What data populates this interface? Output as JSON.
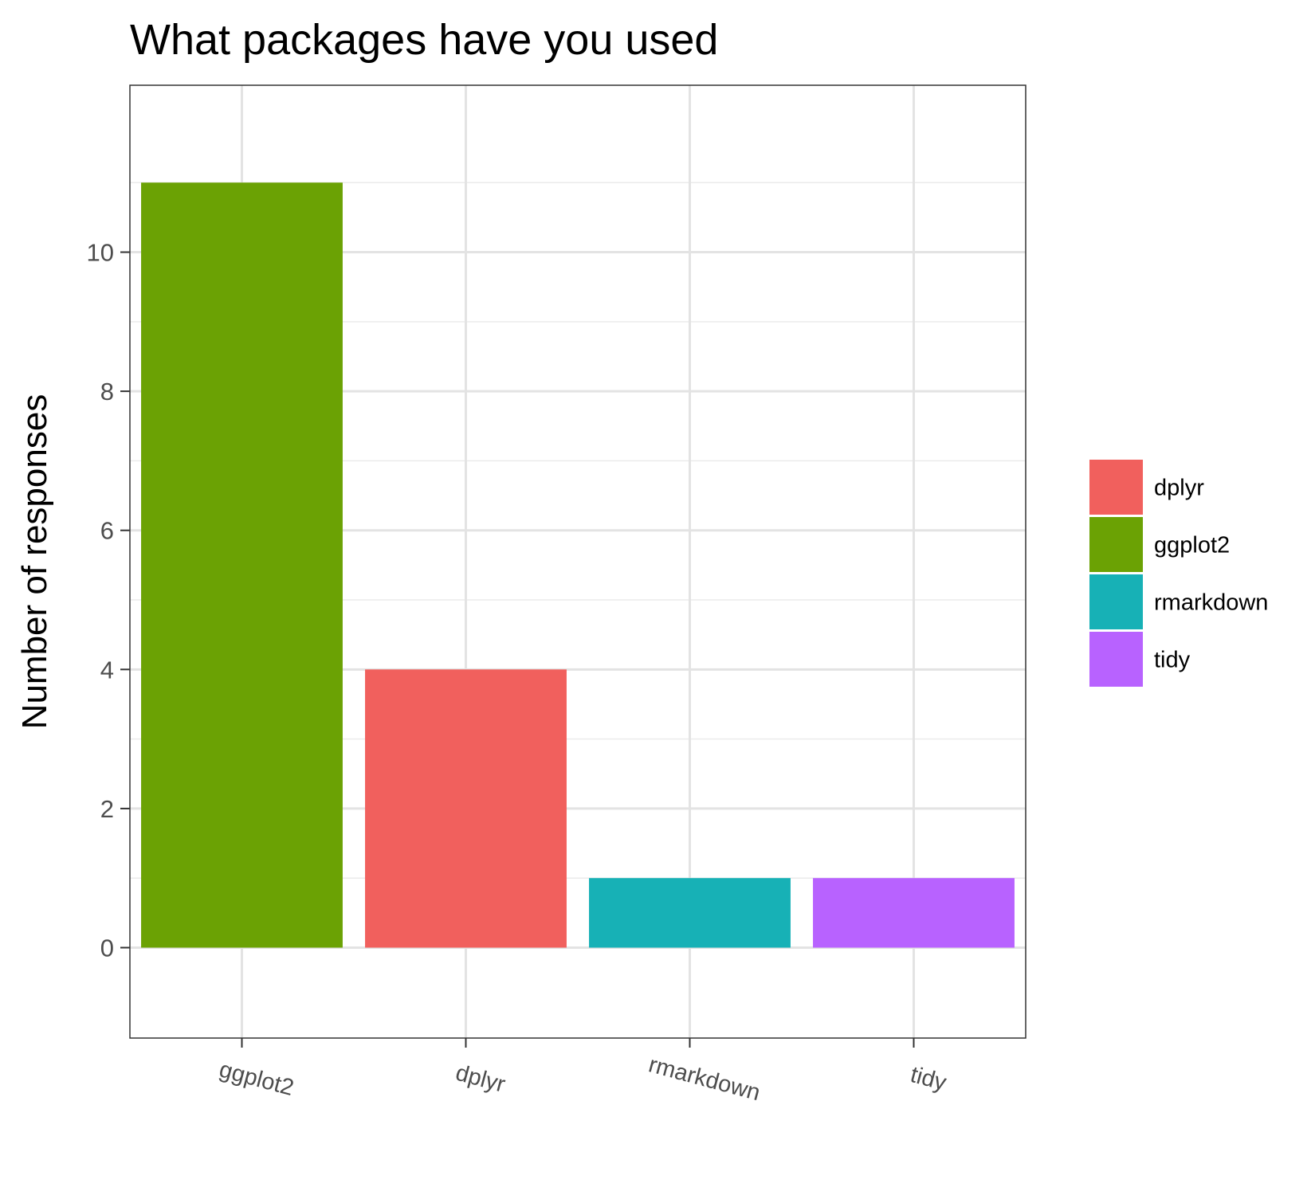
{
  "chart_data": {
    "type": "bar",
    "title": "What packages have you used",
    "xlabel": "",
    "ylabel": "Number of responses",
    "categories": [
      "ggplot2",
      "dplyr",
      "rmarkdown",
      "tidy"
    ],
    "values": [
      11,
      4,
      1,
      1
    ],
    "colors": [
      "#6BA204",
      "#F1605D",
      "#17B1B6",
      "#B862FF"
    ],
    "ylim": [
      -1.3,
      12.4
    ],
    "yticks": [
      0,
      2,
      4,
      6,
      8,
      10
    ],
    "y_minor_ticks": [
      1,
      3,
      5,
      7,
      9,
      11
    ],
    "grid": true,
    "x_tick_rotation": "-15deg",
    "legend": {
      "position": "right",
      "entries": [
        {
          "label": "dplyr",
          "color": "#F1605D"
        },
        {
          "label": "ggplot2",
          "color": "#6BA204"
        },
        {
          "label": "rmarkdown",
          "color": "#17B1B6"
        },
        {
          "label": "tidy",
          "color": "#B862FF"
        }
      ]
    }
  }
}
